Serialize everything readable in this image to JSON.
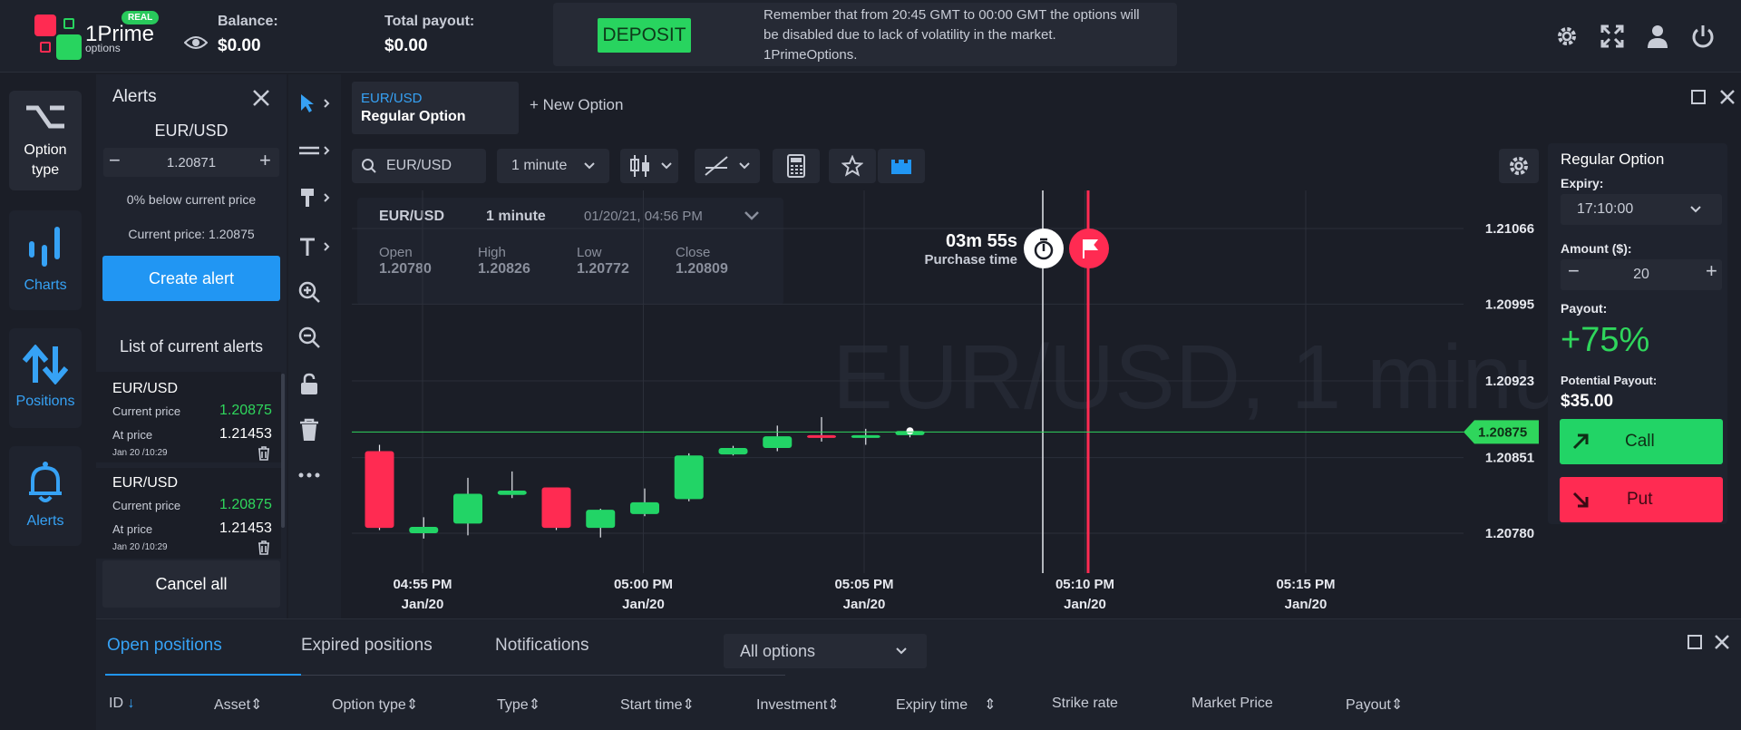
{
  "header": {
    "logo_text": "1Prime",
    "logo_sub": "options",
    "real_badge": "REAL",
    "balance_label": "Balance:",
    "balance_value": "$0.00",
    "payout_label": "Total payout:",
    "payout_value": "$0.00",
    "deposit_label": "DEPOSIT",
    "notice": "Remember that from 20:45 GMT to 00:00 GMT the options will be disabled due to lack of volatility in the market. 1PrimeOptions."
  },
  "nav": {
    "items": [
      {
        "label": "Option type",
        "icon": "option-type-icon"
      },
      {
        "label": "Charts",
        "icon": "bar-chart-icon"
      },
      {
        "label": "Positions",
        "icon": "up-down-arrows-icon"
      },
      {
        "label": "Alerts",
        "icon": "bell-icon"
      }
    ]
  },
  "alerts": {
    "title": "Alerts",
    "pair": "EUR/USD",
    "price_value": "1.20871",
    "below_text": "0% below current price",
    "current_price_text": "Current price: 1.20875",
    "create_label": "Create alert",
    "list_title": "List of current alerts",
    "items": [
      {
        "pair": "EUR/USD",
        "current_label": "Current price",
        "current_value": "1.20875",
        "at_label": "At price",
        "at_value": "1.21453",
        "date": "Jan 20 /10:29"
      },
      {
        "pair": "EUR/USD",
        "current_label": "Current price",
        "current_value": "1.20875",
        "at_label": "At price",
        "at_value": "1.21453",
        "date": "Jan 20 /10:29"
      }
    ],
    "cancel_label": "Cancel all"
  },
  "tabs": {
    "active_pair": "EUR/USD",
    "active_type": "Regular Option",
    "new_option": "+ New Option"
  },
  "toolbar": {
    "search_value": "EUR/USD",
    "interval": "1 minute"
  },
  "ohlc": {
    "pair": "EUR/USD",
    "interval": "1 minute",
    "datetime": "01/20/21, 04:56 PM",
    "open_label": "Open",
    "open_value": "1.20780",
    "high_label": "High",
    "high_value": "1.20826",
    "low_label": "Low",
    "low_value": "1.20772",
    "close_label": "Close",
    "close_value": "1.20809"
  },
  "chart": {
    "watermark": "EUR/USD, 1 minute",
    "timer": "03m 55s",
    "timer_label": "Purchase time",
    "current_price": "1.20875",
    "y_ticks": [
      "1.21066",
      "1.20995",
      "1.20923",
      "1.20851",
      "1.20780"
    ],
    "x_ticks": [
      {
        "time": "04:55 PM",
        "date": "Jan/20"
      },
      {
        "time": "05:00 PM",
        "date": "Jan/20"
      },
      {
        "time": "05:05 PM",
        "date": "Jan/20"
      },
      {
        "time": "05:10 PM",
        "date": "Jan/20"
      },
      {
        "time": "05:15 PM",
        "date": "Jan/20"
      }
    ],
    "colors": {
      "up": "#22d466",
      "down": "#ff2b52",
      "price_line": "#2fd65c"
    }
  },
  "chart_data": {
    "type": "candlestick",
    "ylim": [
      1.2076,
      1.2109
    ],
    "candles": [
      {
        "o": 1.20857,
        "h": 1.20863,
        "l": 1.20783,
        "c": 1.20785
      },
      {
        "o": 1.2078,
        "h": 1.20795,
        "l": 1.20775,
        "c": 1.20786
      },
      {
        "o": 1.20789,
        "h": 1.20832,
        "l": 1.20778,
        "c": 1.20817
      },
      {
        "o": 1.20816,
        "h": 1.20838,
        "l": 1.20813,
        "c": 1.2082
      },
      {
        "o": 1.20823,
        "h": 1.20823,
        "l": 1.20783,
        "c": 1.20785
      },
      {
        "o": 1.20785,
        "h": 1.20803,
        "l": 1.20776,
        "c": 1.20802
      },
      {
        "o": 1.20798,
        "h": 1.20822,
        "l": 1.20796,
        "c": 1.20809
      },
      {
        "o": 1.20812,
        "h": 1.20855,
        "l": 1.2081,
        "c": 1.20853
      },
      {
        "o": 1.20854,
        "h": 1.20862,
        "l": 1.20853,
        "c": 1.2086
      },
      {
        "o": 1.2086,
        "h": 1.20881,
        "l": 1.20857,
        "c": 1.20871
      },
      {
        "o": 1.20872,
        "h": 1.20889,
        "l": 1.20866,
        "c": 1.2087
      },
      {
        "o": 1.20871,
        "h": 1.20878,
        "l": 1.20863,
        "c": 1.20872
      },
      {
        "o": 1.20872,
        "h": 1.20877,
        "l": 1.2087,
        "c": 1.20876
      }
    ]
  },
  "option_panel": {
    "title": "Regular Option",
    "expiry_label": "Expiry:",
    "expiry_value": "17:10:00",
    "amount_label": "Amount ($):",
    "amount_value": "20",
    "payout_label": "Payout:",
    "payout_value": "+75%",
    "potential_label": "Potential Payout:",
    "potential_value": "$35.00",
    "call_label": "Call",
    "put_label": "Put"
  },
  "bottom": {
    "tabs": [
      "Open positions",
      "Expired positions",
      "Notifications"
    ],
    "filter": "All options",
    "columns": [
      "ID",
      "Asset",
      "Option type",
      "Type",
      "Start time",
      "Investment",
      "Expiry time",
      "Strike rate",
      "Market Price",
      "Payout"
    ]
  }
}
